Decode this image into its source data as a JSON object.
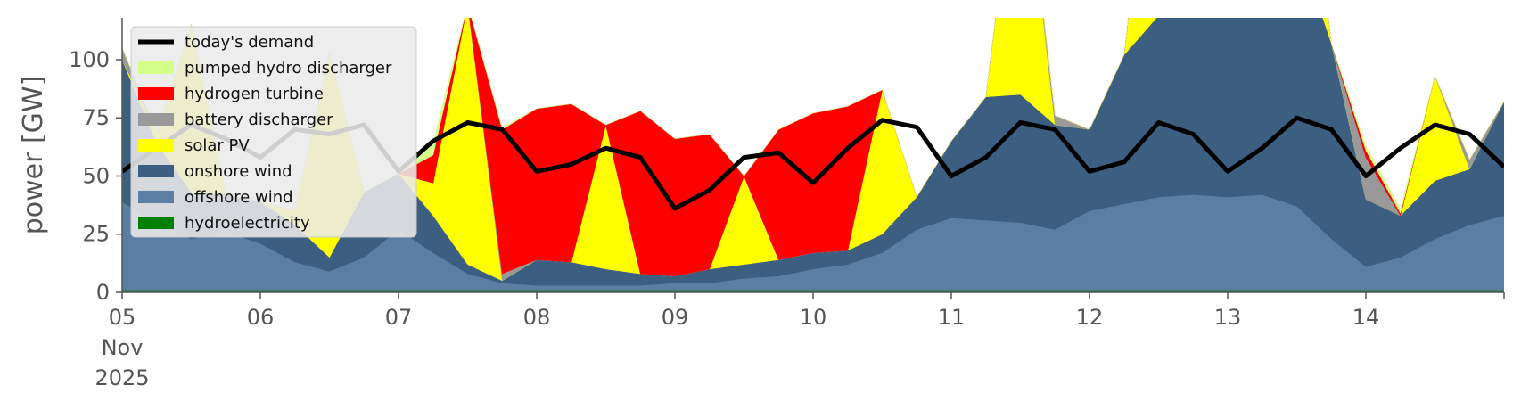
{
  "chart_data": {
    "type": "area",
    "title": "",
    "xlabel": "",
    "ylabel": "power [GW]",
    "ylim": [
      0,
      118
    ],
    "yticks": [
      0,
      25,
      50,
      75,
      100
    ],
    "xlim": [
      "2025-11-05 00:00",
      "2025-11-15 00:00"
    ],
    "xticks": [
      {
        "t": "2025-11-05",
        "label": "05",
        "label2": "Nov",
        "label3": "2025"
      },
      {
        "t": "2025-11-06",
        "label": "06"
      },
      {
        "t": "2025-11-07",
        "label": "07"
      },
      {
        "t": "2025-11-08",
        "label": "08"
      },
      {
        "t": "2025-11-09",
        "label": "09"
      },
      {
        "t": "2025-11-10",
        "label": "10"
      },
      {
        "t": "2025-11-11",
        "label": "11"
      },
      {
        "t": "2025-11-12",
        "label": "12"
      },
      {
        "t": "2025-11-13",
        "label": "13"
      },
      {
        "t": "2025-11-14",
        "label": "14"
      }
    ],
    "grid": false,
    "legend_position": "top-left",
    "x": [
      "2025-11-05 00:00",
      "2025-11-05 06:00",
      "2025-11-05 12:00",
      "2025-11-05 18:00",
      "2025-11-06 00:00",
      "2025-11-06 06:00",
      "2025-11-06 12:00",
      "2025-11-06 18:00",
      "2025-11-07 00:00",
      "2025-11-07 06:00",
      "2025-11-07 12:00",
      "2025-11-07 18:00",
      "2025-11-08 00:00",
      "2025-11-08 06:00",
      "2025-11-08 12:00",
      "2025-11-08 18:00",
      "2025-11-09 00:00",
      "2025-11-09 06:00",
      "2025-11-09 12:00",
      "2025-11-09 18:00",
      "2025-11-10 00:00",
      "2025-11-10 06:00",
      "2025-11-10 12:00",
      "2025-11-10 18:00",
      "2025-11-11 00:00",
      "2025-11-11 06:00",
      "2025-11-11 12:00",
      "2025-11-11 18:00",
      "2025-11-12 00:00",
      "2025-11-12 06:00",
      "2025-11-12 12:00",
      "2025-11-12 18:00",
      "2025-11-13 00:00",
      "2025-11-13 06:00",
      "2025-11-13 12:00",
      "2025-11-13 18:00",
      "2025-11-14 00:00",
      "2025-11-14 06:00",
      "2025-11-14 12:00",
      "2025-11-14 18:00",
      "2025-11-15 00:00"
    ],
    "series": [
      {
        "name": "hydroelectricity",
        "color": "#008000",
        "values": [
          1,
          1,
          1,
          1,
          1,
          1,
          1,
          1,
          1,
          1,
          1,
          1,
          1,
          1,
          1,
          1,
          1,
          1,
          1,
          1,
          1,
          1,
          1,
          1,
          1,
          1,
          1,
          1,
          1,
          1,
          1,
          1,
          1,
          1,
          1,
          1,
          1,
          1,
          1,
          1,
          1
        ]
      },
      {
        "name": "offshore wind",
        "color": "#5b7fa3",
        "values": [
          38,
          28,
          22,
          25,
          20,
          12,
          8,
          14,
          26,
          16,
          7,
          3,
          2,
          2,
          2,
          2,
          3,
          3,
          5,
          6,
          9,
          11,
          16,
          26,
          31,
          30,
          29,
          26,
          34,
          37,
          40,
          41,
          40,
          41,
          36,
          22,
          10,
          14,
          22,
          28,
          32
        ]
      },
      {
        "name": "onshore wind",
        "color": "#3b5e81",
        "values": [
          61,
          35,
          20,
          16,
          18,
          16,
          6,
          28,
          24,
          16,
          4,
          1,
          11,
          10,
          7,
          5,
          3,
          6,
          6,
          7,
          7,
          6,
          8,
          14,
          33,
          53,
          55,
          45,
          35,
          64,
          78,
          90,
          110,
          117,
          115,
          84,
          29,
          18,
          25,
          24,
          49
        ]
      },
      {
        "name": "solar PV",
        "color": "#ffff00",
        "values": [
          0,
          5,
          72,
          0,
          0,
          6,
          88,
          0,
          0,
          14,
          112,
          0,
          0,
          0,
          62,
          0,
          0,
          0,
          38,
          0,
          0,
          0,
          62,
          0,
          0,
          0,
          120,
          0,
          0,
          0,
          110,
          0,
          0,
          0,
          80,
          0,
          0,
          0,
          45,
          0,
          0
        ]
      },
      {
        "name": "battery discharger",
        "color": "#999999",
        "values": [
          5,
          0,
          0,
          0,
          0,
          0,
          0,
          0,
          0,
          0,
          0,
          3,
          0,
          0,
          0,
          0,
          0,
          0,
          0,
          0,
          0,
          0,
          0,
          0,
          0,
          0,
          0,
          4,
          0,
          0,
          0,
          0,
          0,
          0,
          0,
          0,
          18,
          0,
          0,
          4,
          0
        ]
      },
      {
        "name": "hydrogen turbine",
        "color": "#ff0000",
        "values": [
          0,
          0,
          0,
          0,
          0,
          0,
          0,
          0,
          0,
          12,
          0,
          62,
          65,
          68,
          0,
          70,
          59,
          58,
          0,
          56,
          60,
          62,
          0,
          0,
          0,
          0,
          0,
          0,
          0,
          0,
          0,
          0,
          0,
          0,
          0,
          0,
          3,
          1,
          0,
          0,
          0
        ]
      },
      {
        "name": "pumped hydro discharger",
        "color": "#d4ff8a",
        "values": [
          0,
          0,
          0,
          0,
          0,
          0,
          0,
          0,
          0,
          5,
          0,
          1,
          0,
          0,
          0,
          0,
          0,
          0,
          0,
          0,
          0,
          0,
          0,
          0,
          0,
          0,
          0,
          0,
          0,
          0,
          0,
          0,
          0,
          0,
          0,
          0,
          2,
          2,
          0,
          0,
          0
        ]
      }
    ],
    "line_series": {
      "name": "today's demand",
      "color": "#000000",
      "values": [
        52,
        62,
        72,
        66,
        58,
        70,
        68,
        72,
        52,
        65,
        73,
        70,
        52,
        55,
        62,
        58,
        36,
        44,
        58,
        60,
        47,
        62,
        74,
        71,
        50,
        58,
        73,
        70,
        52,
        56,
        73,
        68,
        52,
        62,
        75,
        70,
        50,
        62,
        72,
        68,
        54
      ]
    }
  },
  "legend": [
    {
      "key": "today's demand",
      "label": "today's demand",
      "kind": "line",
      "color": "#000000"
    },
    {
      "key": "pumped hydro discharger",
      "label": "pumped hydro discharger",
      "kind": "patch",
      "color": "#d4ff8a"
    },
    {
      "key": "hydrogen turbine",
      "label": "hydrogen turbine",
      "kind": "patch",
      "color": "#ff0000"
    },
    {
      "key": "battery discharger",
      "label": "battery discharger",
      "kind": "patch",
      "color": "#999999"
    },
    {
      "key": "solar PV",
      "label": "solar PV",
      "kind": "patch",
      "color": "#ffff00"
    },
    {
      "key": "onshore wind",
      "label": "onshore wind",
      "kind": "patch",
      "color": "#3b5e81"
    },
    {
      "key": "offshore wind",
      "label": "offshore wind",
      "kind": "patch",
      "color": "#5b7fa3"
    },
    {
      "key": "hydroelectricity",
      "label": "hydroelectricity",
      "kind": "patch",
      "color": "#008000"
    }
  ]
}
